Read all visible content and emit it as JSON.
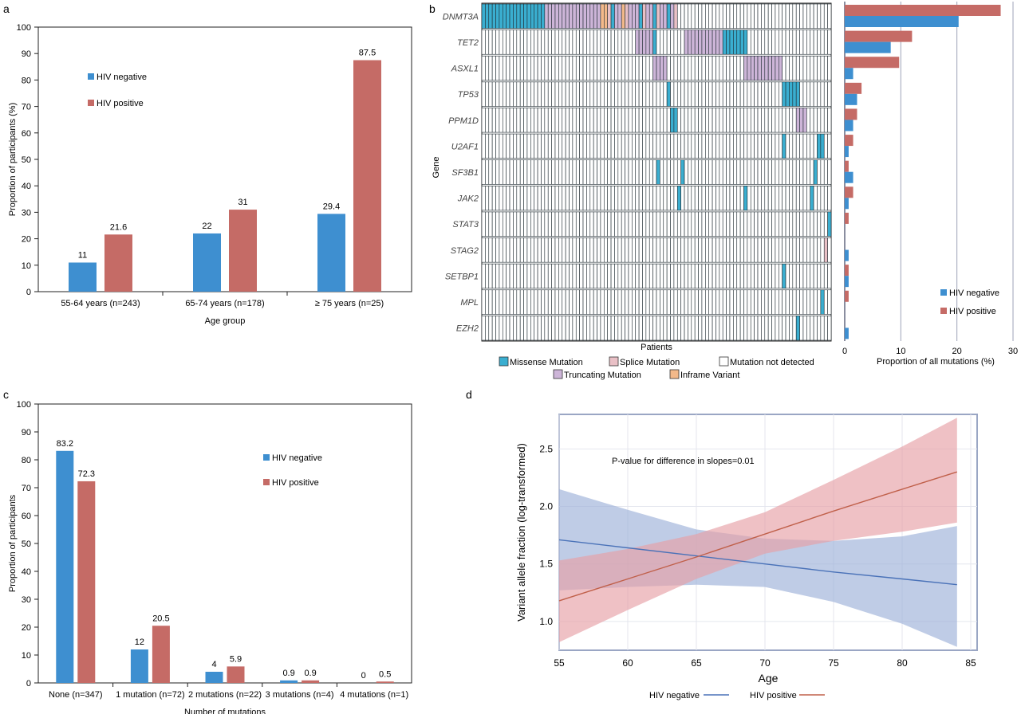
{
  "colors": {
    "hiv_negative": "#3e8fd0",
    "hiv_positive": "#c56b66",
    "missense": "#3aaed0",
    "splice": "#e9c0c6",
    "not_detected": "#ffffff",
    "truncating": "#cdb5d8",
    "inframe": "#f3b98a",
    "ribbon_negative": "#9cb0d8",
    "ribbon_positive": "#e6a0a6",
    "line_negative": "#4a72b8",
    "line_positive": "#c0604a"
  },
  "panel_labels": {
    "a": "a",
    "b": "b",
    "c": "c",
    "d": "d"
  },
  "chart_data": [
    {
      "id": "a",
      "type": "bar",
      "title": "",
      "xlabel": "Age group",
      "ylabel": "Proportion of participants (%)",
      "ylim": [
        0,
        100
      ],
      "yticks": [
        "0",
        "10",
        "20",
        "30",
        "40",
        "50",
        "60",
        "70",
        "80",
        "90",
        "100"
      ],
      "categories": [
        "55-64 years (n=243)",
        "65-74 years (n=178)",
        "≥ 75 years (n=25)"
      ],
      "series": [
        {
          "name": "HIV negative",
          "values": [
            11,
            22,
            29.4
          ],
          "labels": [
            "11",
            "22",
            "29.4"
          ]
        },
        {
          "name": "HIV positive",
          "values": [
            21.6,
            31,
            87.5
          ],
          "labels": [
            "21.6",
            "31",
            "87.5"
          ]
        }
      ],
      "legend": [
        "HIV negative",
        "HIV positive"
      ],
      "legend_position": "top-left"
    },
    {
      "id": "b",
      "type": "heatmap",
      "xlabel": "Patients",
      "ylabel": "Gene",
      "genes": [
        "DNMT3A",
        "TET2",
        "ASXL1",
        "TP53",
        "PPM1D",
        "U2AF1",
        "SF3B1",
        "JAK2",
        "STAT3",
        "STAG2",
        "SETBP1",
        "MPL",
        "EZH2"
      ],
      "n_patients": 100,
      "mutations": [
        {
          "gene": "DNMT3A",
          "missense": [
            0,
            1,
            2,
            3,
            4,
            5,
            6,
            7,
            8,
            9,
            10,
            11,
            12,
            13,
            14,
            15,
            16,
            17,
            37,
            45,
            49,
            53
          ],
          "splice": [
            36,
            41,
            46,
            50,
            55
          ],
          "truncating": [
            18,
            19,
            20,
            21,
            22,
            23,
            24,
            25,
            26,
            27,
            28,
            29,
            30,
            31,
            32,
            33,
            38,
            39,
            42,
            43,
            44,
            47,
            48,
            51,
            52,
            54
          ],
          "inframe": [
            34,
            35,
            40
          ]
        },
        {
          "gene": "TET2",
          "missense": [
            49,
            69,
            70,
            71,
            72,
            73,
            74,
            75
          ],
          "splice": [],
          "truncating": [
            44,
            45,
            46,
            47,
            48,
            58,
            59,
            60,
            61,
            62,
            63,
            64,
            65,
            66,
            67,
            68
          ],
          "inframe": []
        },
        {
          "gene": "ASXL1",
          "missense": [],
          "splice": [],
          "truncating": [
            49,
            50,
            51,
            52,
            75,
            76,
            77,
            78,
            79,
            80,
            81,
            82,
            83,
            84,
            85
          ],
          "inframe": []
        },
        {
          "gene": "TP53",
          "missense": [
            53,
            86,
            87,
            88,
            89,
            90
          ],
          "splice": [],
          "truncating": [],
          "inframe": []
        },
        {
          "gene": "PPM1D",
          "missense": [
            54,
            55
          ],
          "splice": [],
          "truncating": [
            90,
            91,
            92
          ],
          "inframe": []
        },
        {
          "gene": "U2AF1",
          "missense": [
            86,
            96,
            97
          ],
          "splice": [],
          "truncating": [],
          "inframe": []
        },
        {
          "gene": "SF3B1",
          "missense": [
            50,
            57,
            95
          ],
          "splice": [],
          "truncating": [],
          "inframe": []
        },
        {
          "gene": "JAK2",
          "missense": [
            56,
            75,
            94
          ],
          "splice": [],
          "truncating": [],
          "inframe": []
        },
        {
          "gene": "STAT3",
          "missense": [
            99
          ],
          "splice": [],
          "truncating": [],
          "inframe": []
        },
        {
          "gene": "STAG2",
          "missense": [],
          "splice": [
            98
          ],
          "truncating": [],
          "inframe": []
        },
        {
          "gene": "SETBP1",
          "missense": [
            86
          ],
          "splice": [],
          "truncating": [],
          "inframe": []
        },
        {
          "gene": "MPL",
          "missense": [
            97
          ],
          "splice": [],
          "truncating": [],
          "inframe": []
        },
        {
          "gene": "EZH2",
          "missense": [
            90
          ],
          "splice": [],
          "truncating": [],
          "inframe": []
        }
      ],
      "legend": [
        "Missense Mutation",
        "Splice Mutation",
        "Mutation not detected",
        "Truncating Mutation",
        "Inframe Variant"
      ]
    },
    {
      "id": "b-side",
      "type": "bar",
      "orientation": "horizontal",
      "xlabel": "Proportion of all mutations (%)",
      "xlim": [
        0,
        30
      ],
      "xticks": [
        "0",
        "10",
        "20",
        "30"
      ],
      "categories": [
        "DNMT3A",
        "TET2",
        "ASXL1",
        "TP53",
        "PPM1D",
        "U2AF1",
        "SF3B1",
        "JAK2",
        "STAT3",
        "STAG2",
        "SETBP1",
        "MPL",
        "EZH2"
      ],
      "series": [
        {
          "name": "HIV negative",
          "values": [
            20.3,
            8.2,
            1.5,
            2.2,
            1.5,
            0.7,
            1.5,
            0.7,
            0,
            0.7,
            0.7,
            0,
            0.7
          ]
        },
        {
          "name": "HIV positive",
          "values": [
            27.8,
            12,
            9.7,
            3,
            2.2,
            1.5,
            0.7,
            1.5,
            0.7,
            0,
            0.7,
            0.7,
            0
          ]
        }
      ],
      "legend": [
        "HIV negative",
        "HIV positive"
      ],
      "legend_position": "bottom-right"
    },
    {
      "id": "c",
      "type": "bar",
      "title": "",
      "xlabel": "Number of mutations",
      "ylabel": "Proportion of participants",
      "ylim": [
        0,
        100
      ],
      "yticks": [
        "0",
        "10",
        "20",
        "30",
        "40",
        "50",
        "60",
        "70",
        "80",
        "90",
        "100"
      ],
      "categories": [
        "None (n=347)",
        "1 mutation (n=72)",
        "2 mutations (n=22)",
        "3 mutations (n=4)",
        "4 mutations (n=1)"
      ],
      "series": [
        {
          "name": "HIV negative",
          "values": [
            83.2,
            12,
            4,
            0.9,
            0
          ],
          "labels": [
            "83.2",
            "12",
            "4",
            "0.9",
            "0"
          ]
        },
        {
          "name": "HIV positive",
          "values": [
            72.3,
            20.5,
            5.9,
            0.9,
            0.5
          ],
          "labels": [
            "72.3",
            "20.5",
            "5.9",
            "0.9",
            "0.5"
          ]
        }
      ],
      "legend": [
        "HIV negative",
        "HIV positive"
      ],
      "legend_position": "top-right"
    },
    {
      "id": "d",
      "type": "line",
      "xlabel": "Age",
      "ylabel": "Variant allele fraction (log-transformed)",
      "xlim": [
        55,
        85
      ],
      "ylim": [
        0.75,
        2.8
      ],
      "xticks": [
        "55",
        "60",
        "65",
        "70",
        "75",
        "80",
        "85"
      ],
      "yticks": [
        "1.0",
        "1.5",
        "2.0",
        "2.5"
      ],
      "annotation": "P-value for difference in slopes=0.01",
      "series": [
        {
          "name": "HIV negative",
          "x": [
            55,
            60,
            65,
            70,
            75,
            80,
            84
          ],
          "y": [
            1.71,
            1.64,
            1.57,
            1.5,
            1.43,
            1.37,
            1.32
          ],
          "lower": [
            1.27,
            1.3,
            1.32,
            1.3,
            1.17,
            0.98,
            0.78
          ],
          "upper": [
            2.15,
            1.97,
            1.8,
            1.72,
            1.7,
            1.74,
            1.83
          ]
        },
        {
          "name": "HIV positive",
          "x": [
            55,
            60,
            65,
            70,
            75,
            80,
            84
          ],
          "y": [
            1.18,
            1.37,
            1.56,
            1.76,
            1.96,
            2.15,
            2.3
          ],
          "lower": [
            0.82,
            1.1,
            1.37,
            1.59,
            1.7,
            1.78,
            1.86
          ],
          "upper": [
            1.53,
            1.63,
            1.76,
            1.95,
            2.23,
            2.52,
            2.77
          ]
        }
      ],
      "legend": [
        "HIV negative",
        "HIV positive"
      ],
      "legend_position": "bottom"
    }
  ]
}
